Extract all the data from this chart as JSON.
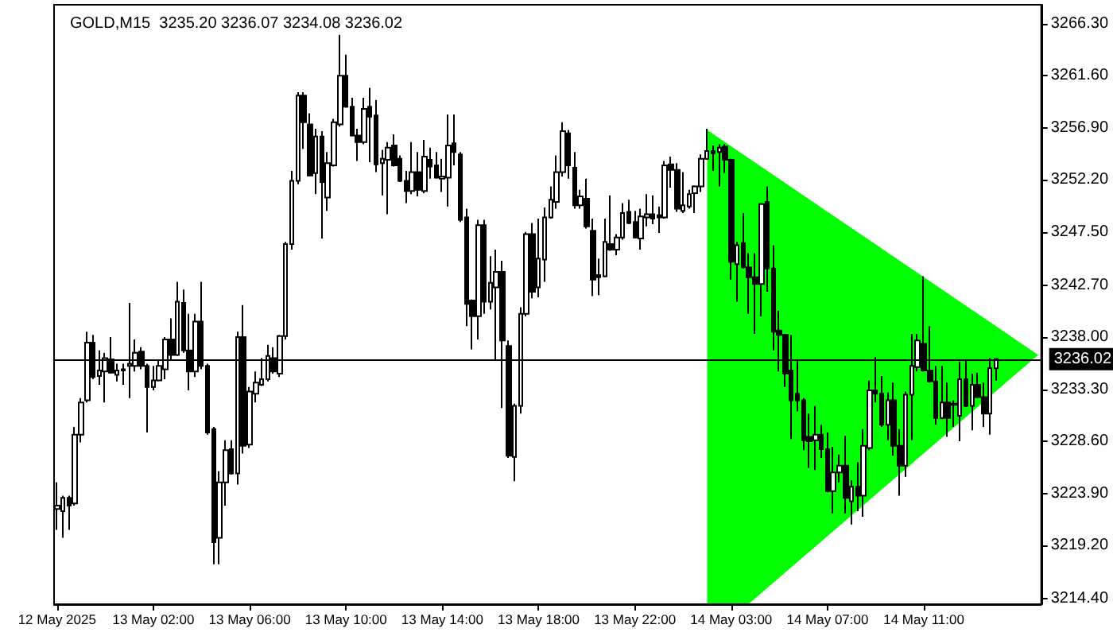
{
  "chart_data": {
    "type": "candlestick",
    "title": "GOLD,M15  3235.20 3236.07 3234.08 3236.02",
    "categories": [
      "12 May 2025",
      null,
      null,
      null,
      null,
      null,
      null,
      null,
      null,
      null,
      null,
      null,
      null,
      null,
      null,
      null,
      "13 May 02:00",
      null,
      null,
      null,
      null,
      null,
      null,
      null,
      null,
      null,
      null,
      null,
      null,
      null,
      null,
      null,
      "13 May 06:00",
      null,
      null,
      null,
      null,
      null,
      null,
      null,
      null,
      null,
      null,
      null,
      null,
      null,
      null,
      null,
      "13 May 10:00",
      null,
      null,
      null,
      null,
      null,
      null,
      null,
      null,
      null,
      null,
      null,
      null,
      null,
      null,
      null,
      "13 May 14:00",
      null,
      null,
      null,
      null,
      null,
      null,
      null,
      null,
      null,
      null,
      null,
      null,
      null,
      null,
      null,
      "13 May 18:00",
      null,
      null,
      null,
      null,
      null,
      null,
      null,
      null,
      null,
      null,
      null,
      null,
      null,
      null,
      null,
      "13 May 22:00",
      null,
      null,
      null,
      null,
      null,
      null,
      null,
      null,
      null,
      null,
      null,
      null,
      null,
      null,
      null,
      "14 May 03:00",
      null,
      null,
      null,
      null,
      null,
      null,
      null,
      null,
      null,
      null,
      null,
      null,
      null,
      null,
      null,
      "14 May 07:00",
      null,
      null,
      null,
      null,
      null,
      null,
      null,
      null,
      null,
      null,
      null,
      null,
      null,
      null,
      null,
      "14 May 11:00",
      null,
      null,
      null,
      null,
      null,
      null,
      null,
      null,
      null,
      null,
      null,
      null,
      null,
      null,
      null,
      null,
      null,
      null,
      null
    ],
    "ohlc": [
      [
        3222.5,
        3224.9,
        3220.6,
        3222.8
      ],
      [
        3222.3,
        3223.7,
        3219.9,
        3223.5
      ],
      [
        3223.5,
        3223.7,
        3220.6,
        3222.8
      ],
      [
        3223.0,
        3229.9,
        3222.8,
        3229.2
      ],
      [
        3229.2,
        3232.5,
        3228.5,
        3232.1
      ],
      [
        3232.3,
        3238.5,
        3232.1,
        3237.5
      ],
      [
        3237.5,
        3238.2,
        3234.2,
        3234.4
      ],
      [
        3234.5,
        3236.8,
        3233.7,
        3235.0
      ],
      [
        3234.9,
        3236.6,
        3232.1,
        3236.1
      ],
      [
        3236.0,
        3238.0,
        3234.7,
        3234.8
      ],
      [
        3234.6,
        3235.6,
        3234.0,
        3235.0
      ],
      [
        3235.0,
        3235.6,
        3233.7,
        3235.1
      ],
      [
        3235.4,
        3241.1,
        3232.5,
        3235.6
      ],
      [
        3235.4,
        3237.8,
        3234.9,
        3236.6
      ],
      [
        3236.7,
        3237.1,
        3235.1,
        3235.4
      ],
      [
        3235.4,
        3235.6,
        3229.4,
        3233.5
      ],
      [
        3233.5,
        3235.4,
        3233.2,
        3234.1
      ],
      [
        3234.1,
        3235.9,
        3234.0,
        3235.4
      ],
      [
        3235.1,
        3238.0,
        3234.2,
        3237.8
      ],
      [
        3237.8,
        3239.7,
        3235.9,
        3236.4
      ],
      [
        3236.4,
        3243.0,
        3236.3,
        3241.2
      ],
      [
        3241.1,
        3242.3,
        3236.6,
        3236.8
      ],
      [
        3236.8,
        3240.1,
        3233.2,
        3234.9
      ],
      [
        3234.9,
        3240.1,
        3234.4,
        3239.4
      ],
      [
        3239.4,
        3243.0,
        3235.1,
        3235.4
      ],
      [
        3235.4,
        3235.6,
        3229.2,
        3229.4
      ],
      [
        3229.7,
        3229.9,
        3217.5,
        3219.5
      ],
      [
        3219.9,
        3225.9,
        3217.5,
        3224.9
      ],
      [
        3224.9,
        3228.7,
        3222.8,
        3227.8
      ],
      [
        3227.9,
        3228.7,
        3225.6,
        3225.7
      ],
      [
        3225.7,
        3238.5,
        3224.7,
        3238.0
      ],
      [
        3238.0,
        3240.9,
        3227.5,
        3228.2
      ],
      [
        3228.3,
        3233.5,
        3228.0,
        3233.1
      ],
      [
        3232.9,
        3234.9,
        3232.1,
        3233.9
      ],
      [
        3233.7,
        3236.1,
        3233.6,
        3234.2
      ],
      [
        3234.2,
        3237.3,
        3234.0,
        3236.3
      ],
      [
        3236.1,
        3237.1,
        3234.7,
        3234.9
      ],
      [
        3234.7,
        3238.2,
        3234.4,
        3238.1
      ],
      [
        3238.1,
        3246.6,
        3237.8,
        3246.4
      ],
      [
        3246.4,
        3253.0,
        3245.9,
        3252.1
      ],
      [
        3252.1,
        3260.1,
        3251.8,
        3259.8
      ],
      [
        3259.8,
        3260.1,
        3255.0,
        3257.4
      ],
      [
        3257.2,
        3258.2,
        3252.5,
        3252.6
      ],
      [
        3252.8,
        3256.8,
        3250.9,
        3256.1
      ],
      [
        3256.1,
        3256.6,
        3246.9,
        3252.0
      ],
      [
        3250.6,
        3254.7,
        3249.4,
        3253.7
      ],
      [
        3253.5,
        3257.7,
        3253.4,
        3257.4
      ],
      [
        3257.2,
        3265.3,
        3257.0,
        3261.6
      ],
      [
        3261.6,
        3263.5,
        3258.7,
        3258.8
      ],
      [
        3258.8,
        3259.6,
        3256.1,
        3256.2
      ],
      [
        3256.2,
        3256.8,
        3253.9,
        3255.6
      ],
      [
        3255.6,
        3259.6,
        3255.4,
        3258.6
      ],
      [
        3258.8,
        3260.5,
        3253.8,
        3257.9
      ],
      [
        3258.0,
        3259.4,
        3252.9,
        3253.6
      ],
      [
        3253.7,
        3254.9,
        3250.8,
        3254.1
      ],
      [
        3254.0,
        3255.6,
        3249.1,
        3255.1
      ],
      [
        3255.3,
        3256.3,
        3253.4,
        3253.5
      ],
      [
        3254.1,
        3254.4,
        3252.0,
        3252.1
      ],
      [
        3252.1,
        3253.0,
        3250.1,
        3251.2
      ],
      [
        3251.2,
        3255.6,
        3250.9,
        3252.9
      ],
      [
        3252.9,
        3254.7,
        3250.7,
        3251.3
      ],
      [
        3251.2,
        3255.8,
        3251.0,
        3254.3
      ],
      [
        3254.0,
        3255.1,
        3252.3,
        3253.4
      ],
      [
        3253.5,
        3254.7,
        3252.3,
        3252.4
      ],
      [
        3252.3,
        3254.1,
        3251.1,
        3252.5
      ],
      [
        3252.4,
        3258.1,
        3249.8,
        3255.3
      ],
      [
        3255.5,
        3258.1,
        3253.5,
        3254.7
      ],
      [
        3254.5,
        3254.7,
        3248.4,
        3248.6
      ],
      [
        3248.8,
        3249.6,
        3239.0,
        3241.0
      ],
      [
        3241.3,
        3241.4,
        3236.9,
        3239.9
      ],
      [
        3239.9,
        3248.6,
        3237.8,
        3248.1
      ],
      [
        3248.1,
        3248.6,
        3240.1,
        3241.2
      ],
      [
        3241.2,
        3245.3,
        3240.5,
        3242.9
      ],
      [
        3242.5,
        3245.9,
        3236.0,
        3243.9
      ],
      [
        3243.9,
        3244.9,
        3231.6,
        3237.7
      ],
      [
        3237.2,
        3237.7,
        3227.1,
        3227.3
      ],
      [
        3227.2,
        3232.0,
        3225.0,
        3231.8
      ],
      [
        3231.8,
        3240.7,
        3231.1,
        3240.1
      ],
      [
        3240.1,
        3247.5,
        3239.9,
        3247.3
      ],
      [
        3247.3,
        3248.3,
        3241.5,
        3242.1
      ],
      [
        3242.5,
        3248.7,
        3241.6,
        3245.1
      ],
      [
        3245.0,
        3249.7,
        3243.0,
        3248.8
      ],
      [
        3248.8,
        3251.6,
        3248.7,
        3250.4
      ],
      [
        3250.2,
        3254.4,
        3249.6,
        3252.9
      ],
      [
        3252.9,
        3257.4,
        3252.5,
        3256.6
      ],
      [
        3256.4,
        3256.7,
        3252.3,
        3253.5
      ],
      [
        3253.3,
        3254.7,
        3249.6,
        3249.9
      ],
      [
        3249.9,
        3251.3,
        3249.6,
        3250.7
      ],
      [
        3250.5,
        3252.3,
        3247.8,
        3248.0
      ],
      [
        3247.6,
        3248.7,
        3241.7,
        3243.2
      ],
      [
        3243.6,
        3245.1,
        3241.8,
        3243.4
      ],
      [
        3243.5,
        3248.7,
        3243.4,
        3246.6
      ],
      [
        3246.4,
        3250.8,
        3245.8,
        3245.9
      ],
      [
        3245.9,
        3247.3,
        3245.4,
        3247.0
      ],
      [
        3247.0,
        3250.1,
        3246.8,
        3249.2
      ],
      [
        3249.3,
        3250.4,
        3248.2,
        3248.3
      ],
      [
        3248.4,
        3249.4,
        3246.9,
        3247.0
      ],
      [
        3246.9,
        3249.6,
        3245.9,
        3248.9
      ],
      [
        3248.8,
        3250.9,
        3248.0,
        3249.1
      ],
      [
        3249.1,
        3250.8,
        3248.2,
        3248.7
      ],
      [
        3249.0,
        3249.8,
        3247.4,
        3248.8
      ],
      [
        3248.8,
        3253.9,
        3248.7,
        3253.5
      ],
      [
        3253.6,
        3254.3,
        3251.5,
        3253.1
      ],
      [
        3253.1,
        3253.7,
        3249.3,
        3249.6
      ],
      [
        3249.4,
        3252.9,
        3249.2,
        3249.9
      ],
      [
        3249.8,
        3251.3,
        3249.6,
        3250.9
      ],
      [
        3251.0,
        3251.7,
        3249.2,
        3251.6
      ],
      [
        3251.6,
        3254.5,
        3251.1,
        3254.1
      ],
      [
        3254.1,
        3256.8,
        3254.0,
        3254.8
      ],
      [
        3254.8,
        3255.3,
        3253.0,
        3254.6
      ],
      [
        3254.7,
        3255.4,
        3251.6,
        3255.1
      ],
      [
        3255.2,
        3255.4,
        3252.8,
        3254.0
      ],
      [
        3254.0,
        3254.1,
        3243.2,
        3244.8
      ],
      [
        3244.6,
        3246.6,
        3241.2,
        3246.3
      ],
      [
        3246.5,
        3249.2,
        3244.2,
        3244.3
      ],
      [
        3244.3,
        3245.6,
        3240.1,
        3243.4
      ],
      [
        3243.4,
        3245.6,
        3238.3,
        3242.8
      ],
      [
        3242.8,
        3250.1,
        3239.9,
        3250.0
      ],
      [
        3250.2,
        3251.6,
        3242.1,
        3244.2
      ],
      [
        3244.2,
        3246.3,
        3236.8,
        3238.5
      ],
      [
        3238.6,
        3240.4,
        3234.9,
        3238.2
      ],
      [
        3238.2,
        3238.3,
        3233.5,
        3234.7
      ],
      [
        3235.0,
        3238.2,
        3228.8,
        3232.3
      ],
      [
        3232.9,
        3235.9,
        3231.3,
        3232.3
      ],
      [
        3232.3,
        3232.5,
        3227.8,
        3228.7
      ],
      [
        3229.0,
        3231.1,
        3226.2,
        3228.6
      ],
      [
        3228.7,
        3231.8,
        3226.0,
        3229.2
      ],
      [
        3229.2,
        3230.1,
        3227.1,
        3227.9
      ],
      [
        3227.9,
        3229.4,
        3224.0,
        3224.1
      ],
      [
        3224.1,
        3228.1,
        3222.1,
        3225.8
      ],
      [
        3225.8,
        3227.4,
        3224.9,
        3226.4
      ],
      [
        3226.4,
        3229.1,
        3222.1,
        3223.5
      ],
      [
        3223.2,
        3225.1,
        3221.1,
        3224.5
      ],
      [
        3224.5,
        3226.7,
        3222.3,
        3223.7
      ],
      [
        3223.7,
        3229.7,
        3221.8,
        3228.2
      ],
      [
        3228.0,
        3234.1,
        3227.8,
        3233.2
      ],
      [
        3233.2,
        3236.2,
        3232.1,
        3232.9
      ],
      [
        3232.9,
        3234.5,
        3229.9,
        3230.1
      ],
      [
        3230.1,
        3233.0,
        3228.7,
        3232.3
      ],
      [
        3232.3,
        3233.9,
        3227.3,
        3228.2
      ],
      [
        3228.2,
        3229.7,
        3223.7,
        3226.4
      ],
      [
        3226.4,
        3233.1,
        3225.4,
        3232.8
      ],
      [
        3232.8,
        3238.3,
        3228.7,
        3235.4
      ],
      [
        3235.3,
        3238.3,
        3234.9,
        3237.7
      ],
      [
        3237.4,
        3243.5,
        3234.9,
        3235.0
      ],
      [
        3235.0,
        3239.0,
        3233.9,
        3234.0
      ],
      [
        3234.0,
        3235.4,
        3230.1,
        3230.7
      ],
      [
        3230.7,
        3235.4,
        3230.6,
        3232.1
      ],
      [
        3232.1,
        3233.9,
        3229.0,
        3230.7
      ],
      [
        3232.0,
        3232.3,
        3229.9,
        3231.9
      ],
      [
        3230.9,
        3235.8,
        3228.6,
        3234.2
      ],
      [
        3234.2,
        3235.9,
        3231.7,
        3231.8
      ],
      [
        3231.8,
        3234.7,
        3229.6,
        3233.7
      ],
      [
        3233.7,
        3234.8,
        3232.5,
        3232.6
      ],
      [
        3232.6,
        3233.9,
        3229.9,
        3231.1
      ],
      [
        3231.1,
        3236.1,
        3229.2,
        3235.2
      ],
      [
        3235.2,
        3236.07,
        3234.08,
        3236.02
      ],
      null,
      null,
      null,
      null,
      null,
      null,
      null
    ],
    "ylim": [
      3213.9,
      3268.0
    ],
    "yticks": [
      {
        "value": 3214.4,
        "label": "3214.40"
      },
      {
        "value": 3219.2,
        "label": "3219.20"
      },
      {
        "value": 3223.9,
        "label": "3223.90"
      },
      {
        "value": 3228.6,
        "label": "3228.60"
      },
      {
        "value": 3233.3,
        "label": "3233.30"
      },
      {
        "value": 3238.0,
        "label": "3238.00"
      },
      {
        "value": 3242.7,
        "label": "3242.70"
      },
      {
        "value": 3247.5,
        "label": "3247.50"
      },
      {
        "value": 3252.2,
        "label": "3252.20"
      },
      {
        "value": 3256.9,
        "label": "3256.90"
      },
      {
        "value": 3261.6,
        "label": "3261.60"
      },
      {
        "value": 3266.3,
        "label": "3266.30"
      }
    ],
    "ref_lines": [
      {
        "axis": "y",
        "value": 3236.02,
        "label": "3236.02",
        "color": "#000000"
      }
    ],
    "grid": false
  }
}
